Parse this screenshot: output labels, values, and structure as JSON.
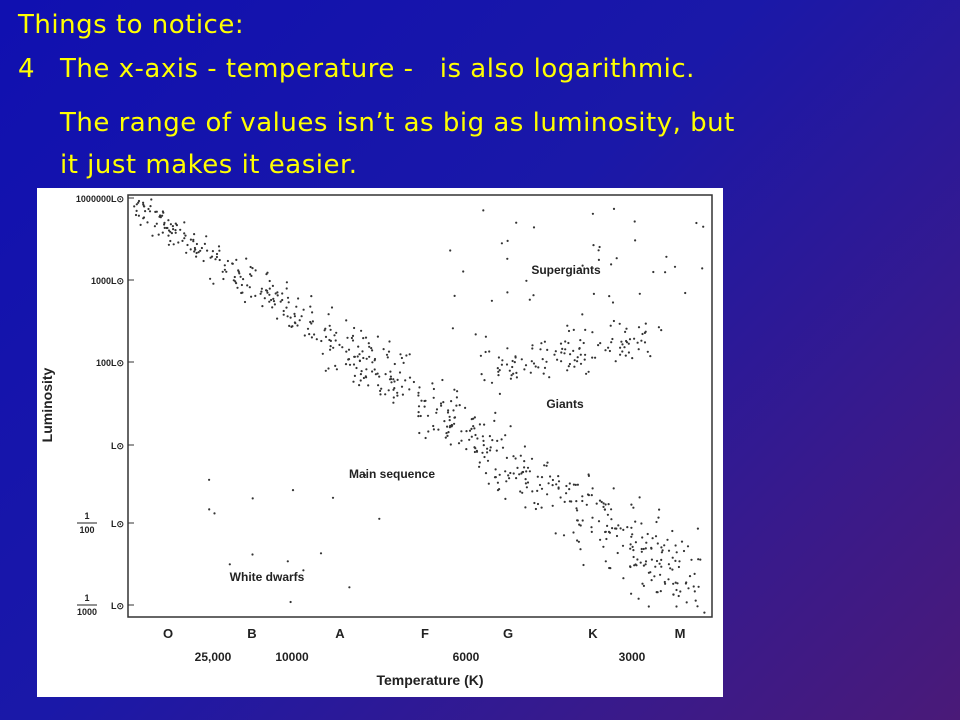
{
  "slide": {
    "heading": "Things to notice:",
    "point_number": "4",
    "point_text": "The x-axis - temperature -   is also logarithmic.",
    "note_lines": [
      "The range of values isn’t as big as luminosity, but",
      "it just makes it easier."
    ]
  },
  "figure": {
    "y_axis_title": "Luminosity",
    "y_labels": [
      {
        "text": "1000000L⊙"
      },
      {
        "text": "1000L⊙"
      },
      {
        "text": "100L⊙"
      },
      {
        "text": "L⊙"
      },
      {
        "numerator": "1",
        "denominator": "100",
        "unit": "L⊙"
      },
      {
        "numerator": "1",
        "denominator": "1000",
        "unit": "L⊙"
      }
    ],
    "spectral_classes": [
      "O",
      "B",
      "A",
      "F",
      "G",
      "K",
      "M"
    ],
    "temperature_labels": [
      "25,000",
      "10000",
      "6000",
      "3000"
    ],
    "x_axis_title": "Temperature (K)",
    "regions": [
      "Supergiants",
      "Giants",
      "Main sequence",
      "White dwarfs"
    ]
  }
}
